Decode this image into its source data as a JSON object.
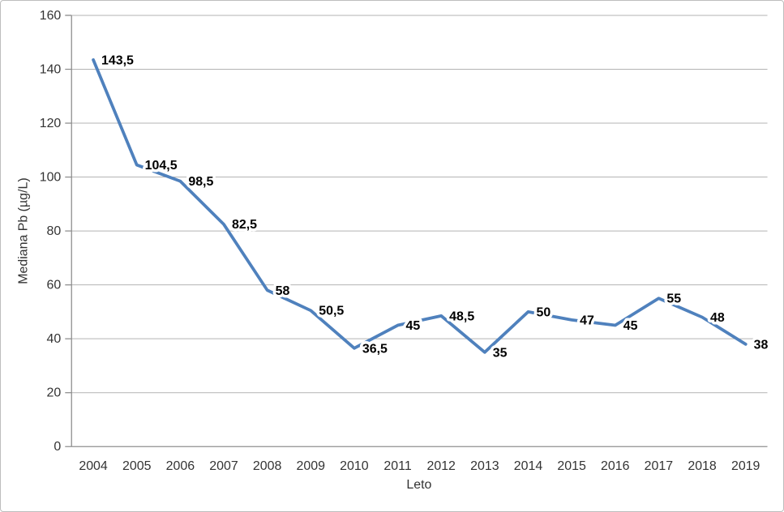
{
  "frame": {
    "background": "#ffffff",
    "border_color": "#bdbdbd"
  },
  "chart_data": {
    "type": "line",
    "title": "",
    "xlabel": "Leto",
    "ylabel": "Mediana Pb (µg/L)",
    "categories": [
      "2004",
      "2005",
      "2006",
      "2007",
      "2008",
      "2009",
      "2010",
      "2011",
      "2012",
      "2013",
      "2014",
      "2015",
      "2016",
      "2017",
      "2018",
      "2019"
    ],
    "values": [
      143.5,
      104.5,
      98.5,
      82.5,
      58,
      50.5,
      36.5,
      45,
      48.5,
      35,
      50,
      47,
      45,
      55,
      48,
      38
    ],
    "point_labels": [
      "143,5",
      "104,5",
      "98,5",
      "82,5",
      "58",
      "50,5",
      "36,5",
      "45",
      "48,5",
      "35",
      "50",
      "47",
      "45",
      "55",
      "48",
      "38"
    ],
    "ylim": [
      0,
      160
    ],
    "ytick_interval": 20,
    "ytick_labels": [
      "0",
      "20",
      "40",
      "60",
      "80",
      "100",
      "120",
      "140",
      "160"
    ],
    "grid": true,
    "legend": "none",
    "decimal_separator": ",",
    "colors": {
      "line": "#4f81bd",
      "gridline": "#b3b3b3",
      "axis": "#8f8f8f",
      "tick_label": "#333333",
      "data_label": "#000000",
      "data_label_halo": "#ffffff"
    }
  }
}
